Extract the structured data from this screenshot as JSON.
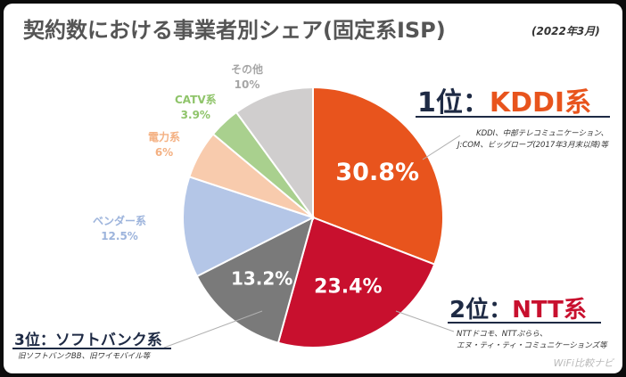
{
  "title": "契約数における事業者別シェア(固定系ISP)",
  "subtitle": "(2022年3月)",
  "chart_data": {
    "type": "pie",
    "title": "契約数における事業者別シェア(固定系ISP)",
    "subtitle": "(2022年3月)",
    "slices": [
      {
        "name": "KDDI系",
        "value": 30.8,
        "label": "30.8%",
        "color": "#e8541d"
      },
      {
        "name": "NTT系",
        "value": 23.4,
        "label": "23.4%",
        "color": "#c8102e"
      },
      {
        "name": "ソフトバンク系",
        "value": 13.2,
        "label": "13.2%",
        "color": "#7a7a7a"
      },
      {
        "name": "ベンダー系",
        "value": 12.5,
        "label": "12.5%",
        "color": "#b4c6e7"
      },
      {
        "name": "電力系",
        "value": 6,
        "label": "6%",
        "color": "#f8cbad"
      },
      {
        "name": "CATV系",
        "value": 3.9,
        "label": "3.9%",
        "color": "#a9d08e"
      },
      {
        "name": "その他",
        "value": 10,
        "label": "10%",
        "color": "#d0cece"
      }
    ]
  },
  "rankings": {
    "first": {
      "rank": "1位：",
      "name": "KDDI系",
      "note": [
        "KDDI、中部テレコミュニケーション、",
        "J:COM、ビッグローブ(2017年3月末以降)等"
      ]
    },
    "second": {
      "rank": "2位：",
      "name": "NTT系",
      "note": [
        "NTTドコモ、NTTぷらら、",
        "エヌ・ティ・ティ・コミュニケーションズ等"
      ]
    },
    "third": {
      "rank": "3位：",
      "name": "ソフトバンク系",
      "note": [
        "旧ソフトバンクBB、旧ワイモバイル等"
      ]
    }
  },
  "watermark": "WiFi比較ナビ"
}
